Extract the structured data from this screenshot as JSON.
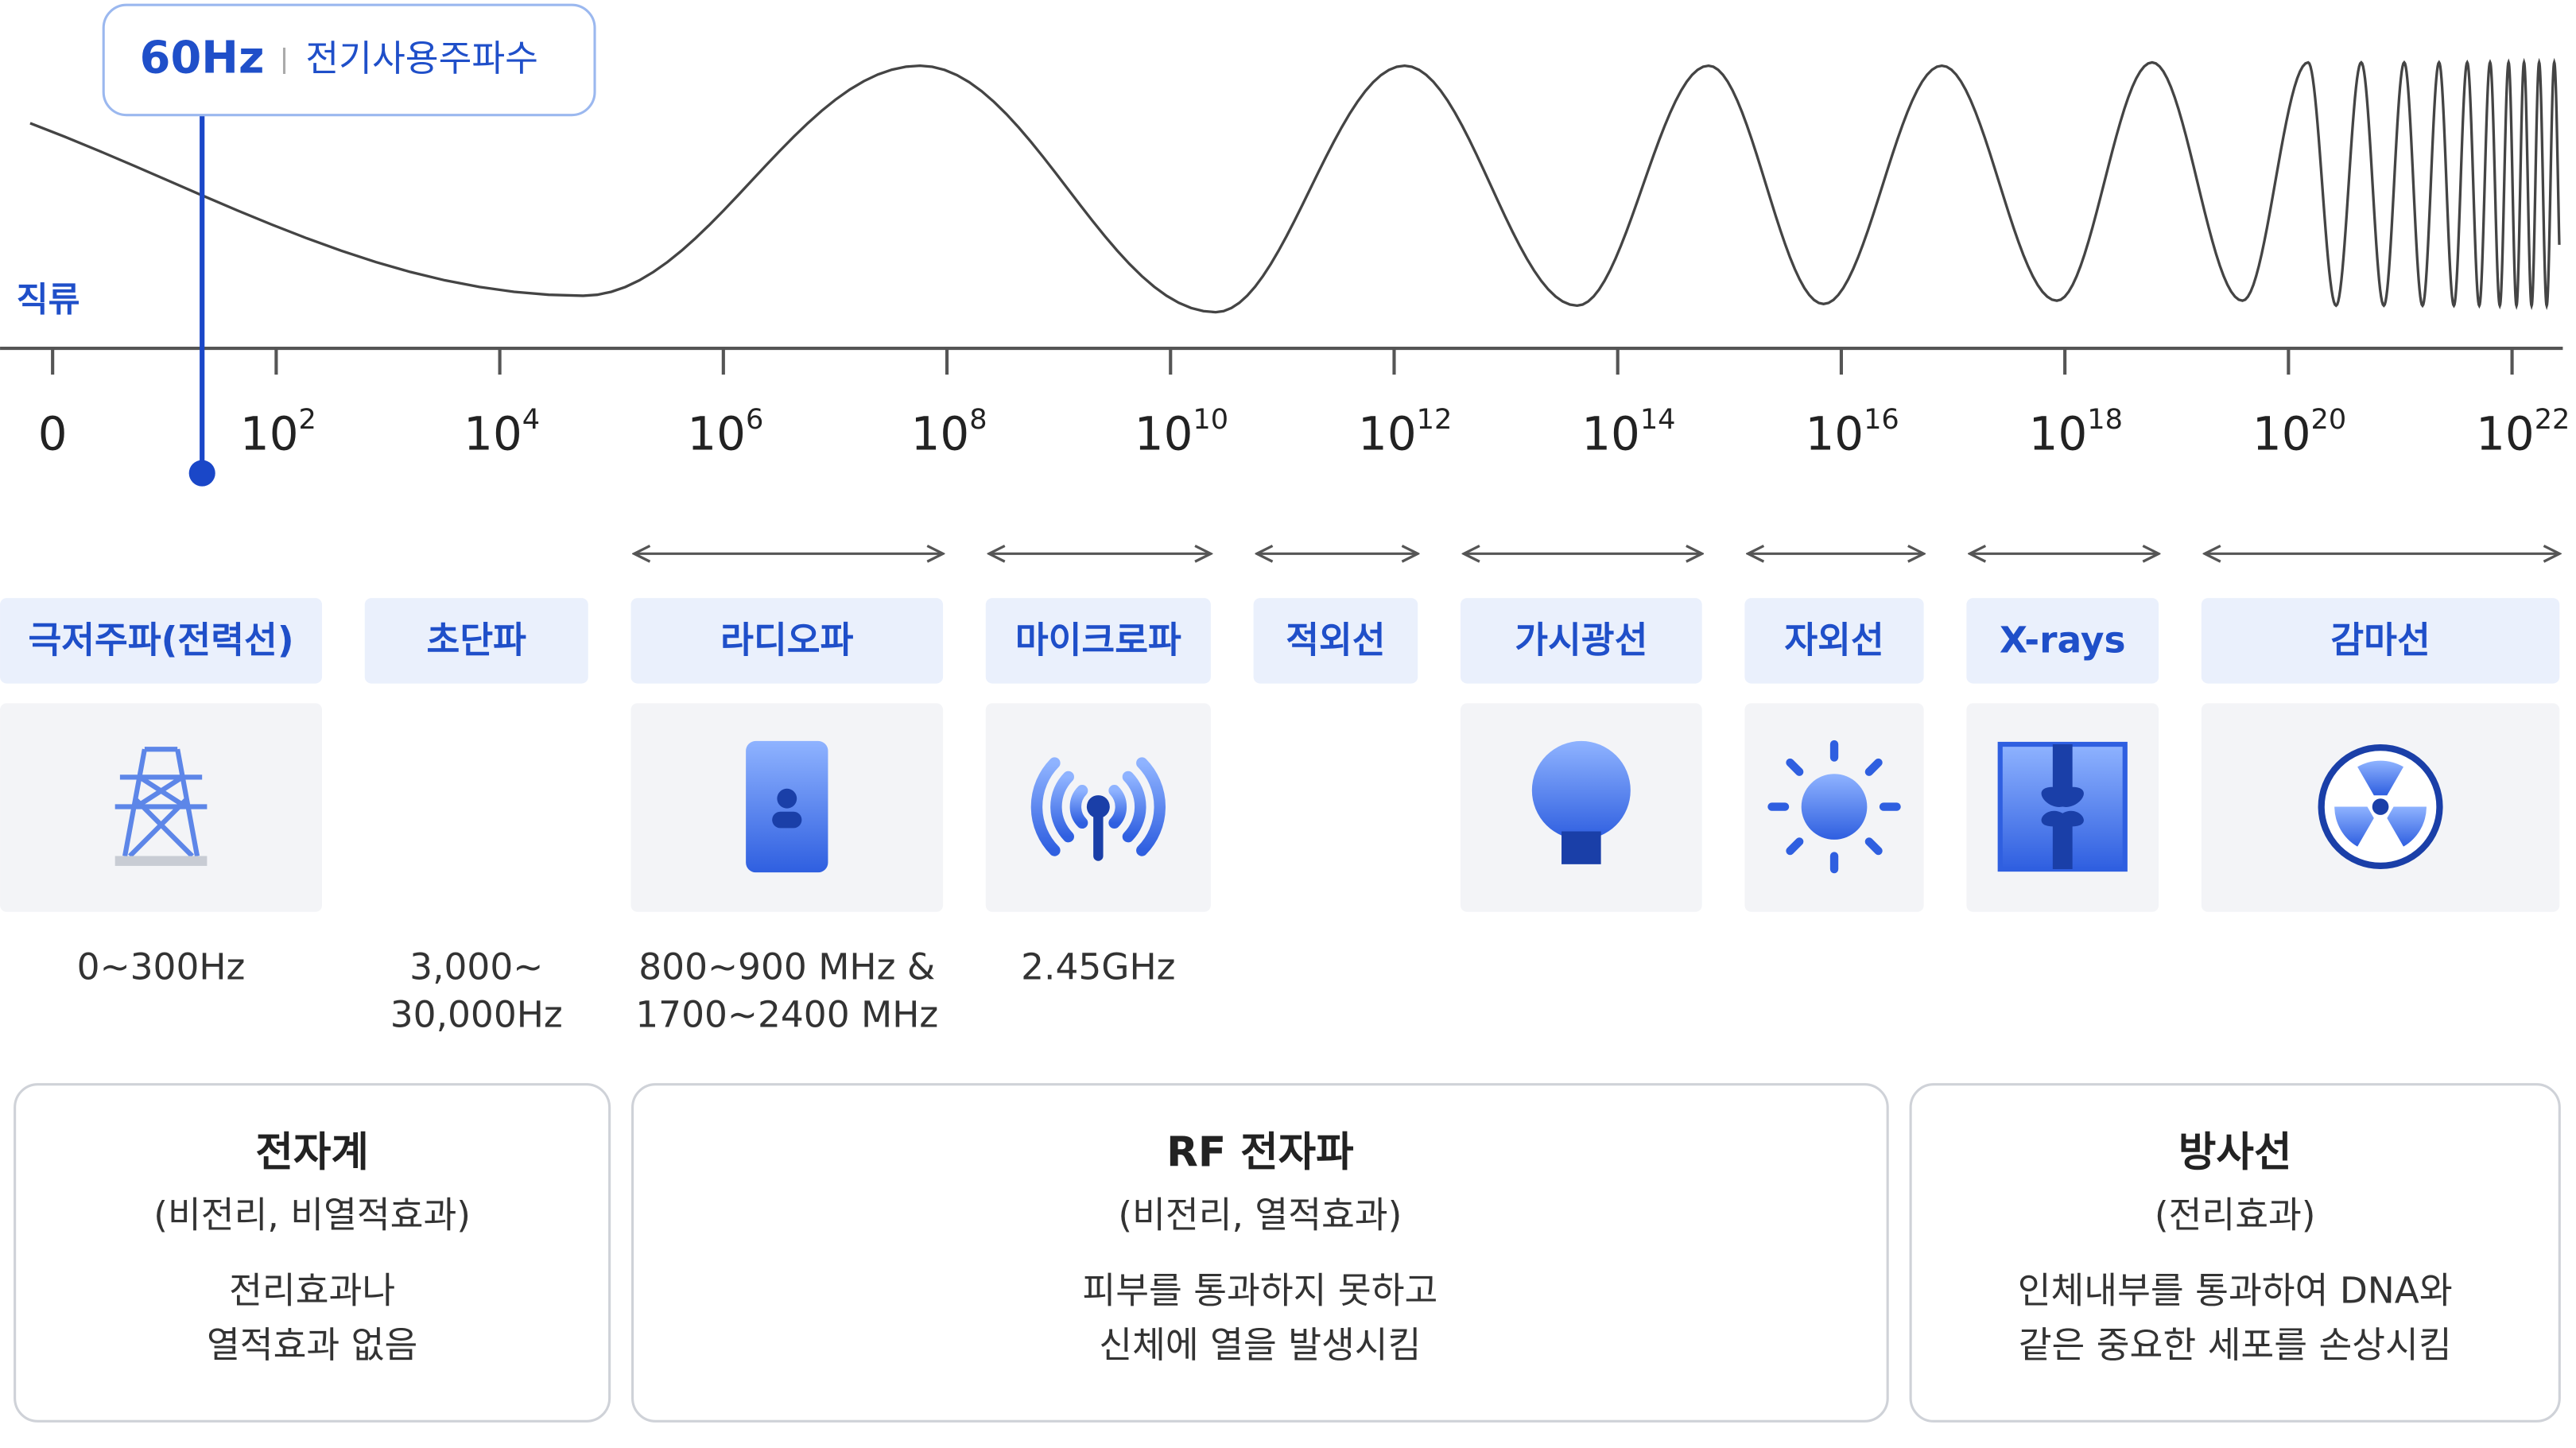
{
  "callout": {
    "frequency": "60Hz",
    "label": "전기사용주파수"
  },
  "dc_label": "직류",
  "axis": {
    "ticks": [
      "0",
      {
        "base": "10",
        "exponent": "2"
      },
      {
        "base": "10",
        "exponent": "4"
      },
      {
        "base": "10",
        "exponent": "6"
      },
      {
        "base": "10",
        "exponent": "8"
      },
      {
        "base": "10",
        "exponent": "10"
      },
      {
        "base": "10",
        "exponent": "12"
      },
      {
        "base": "10",
        "exponent": "14"
      },
      {
        "base": "10",
        "exponent": "16"
      },
      {
        "base": "10",
        "exponent": "18"
      },
      {
        "base": "10",
        "exponent": "20"
      },
      {
        "base": "10",
        "exponent": "22"
      }
    ]
  },
  "bands": [
    {
      "name": "극저주파(전력선)",
      "range": [
        "0~300Hz"
      ]
    },
    {
      "name": "초단파",
      "range": [
        "3,000~",
        "30,000Hz"
      ]
    },
    {
      "name": "라디오파",
      "range": [
        "800~900 MHz &",
        "1700~2400 MHz"
      ]
    },
    {
      "name": "마이크로파",
      "range": [
        "2.45GHz"
      ]
    },
    {
      "name": "적외선"
    },
    {
      "name": "가시광선"
    },
    {
      "name": "자외선"
    },
    {
      "name": "X-rays"
    },
    {
      "name": "감마선"
    }
  ],
  "groups": [
    {
      "title": "전자계",
      "subtitle": "(비전리, 비열적효과)",
      "description": [
        "전리효과나",
        "열적효과 없음"
      ]
    },
    {
      "title": "RF 전자파",
      "subtitle": "(비전리, 열적효과)",
      "description": [
        "피부를 통과하지 못하고",
        "신체에 열을 발생시킴"
      ]
    },
    {
      "title": "방사선",
      "subtitle": "(전리효과)",
      "description": [
        "인체내부를 통과하여 DNA와",
        "같은 중요한 세포를 손상시킴"
      ]
    }
  ]
}
